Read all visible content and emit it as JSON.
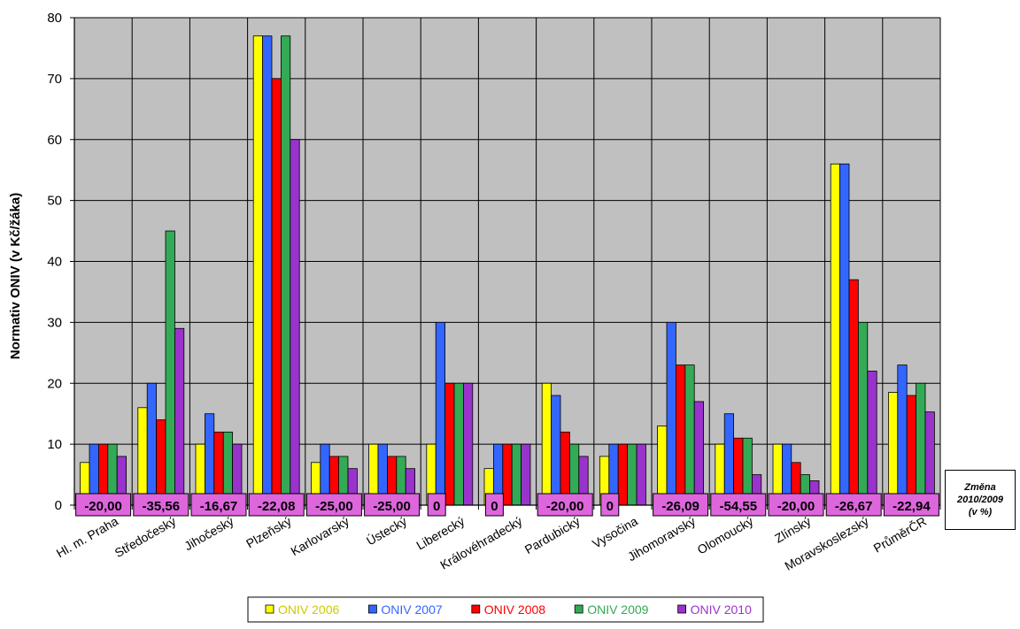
{
  "chart_data": {
    "type": "bar",
    "ylabel": "Normativ ONIV (v Kč/žáka)",
    "ylim": [
      0,
      80
    ],
    "yticks": [
      0,
      10,
      20,
      30,
      40,
      50,
      60,
      70,
      80
    ],
    "grid": true,
    "legend_position": "bottom",
    "categories": [
      "Hl. m. Praha",
      "Středočeský",
      "Jihočeský",
      "Plzeňský",
      "Karlovarský",
      "Ústecký",
      "Liberecký",
      "Královéhradecký",
      "Pardubický",
      "Vysočina",
      "Jihomoravský",
      "Olomoucký",
      "Zlínský",
      "Moravskoslezský",
      "PrůměrČR"
    ],
    "series": [
      {
        "name": "ONIV 2006",
        "color": "#FFFF00",
        "values": [
          7,
          16,
          10,
          77,
          7,
          10,
          10,
          6,
          20,
          8,
          13,
          10,
          10,
          56,
          18.5
        ]
      },
      {
        "name": "ONIV 2007",
        "color": "#3366FF",
        "values": [
          10,
          20,
          15,
          77,
          10,
          10,
          30,
          10,
          18,
          10,
          30,
          15,
          10,
          56,
          23
        ]
      },
      {
        "name": "ONIV 2008",
        "color": "#FF0000",
        "values": [
          10,
          14,
          12,
          70,
          8,
          8,
          20,
          10,
          12,
          10,
          23,
          11,
          7,
          37,
          18
        ]
      },
      {
        "name": "ONIV 2009",
        "color": "#33AA55",
        "values": [
          10,
          45,
          12,
          77,
          8,
          8,
          20,
          10,
          10,
          10,
          23,
          11,
          5,
          30,
          20
        ]
      },
      {
        "name": "ONIV 2010",
        "color": "#9933CC",
        "values": [
          8,
          29,
          10,
          60,
          6,
          6,
          20,
          10,
          8,
          10,
          17,
          5,
          4,
          22,
          15.3
        ]
      }
    ],
    "legend_text_colors": [
      "#CCCC00",
      "#3366FF",
      "#FF0000",
      "#33AA55",
      "#9933CC"
    ],
    "change_labels": [
      "-20,00",
      "-35,56",
      "-16,67",
      "-22,08",
      "-25,00",
      "-25,00",
      "0",
      "0",
      "-20,00",
      "0",
      "-26,09",
      "-54,55",
      "-20,00",
      "-26,67",
      "-22,94"
    ],
    "change_label_color": "#DD66DD",
    "plot_background": "#C0C0C0",
    "annotation": "Změna\n2010/2009\n(v %)"
  }
}
